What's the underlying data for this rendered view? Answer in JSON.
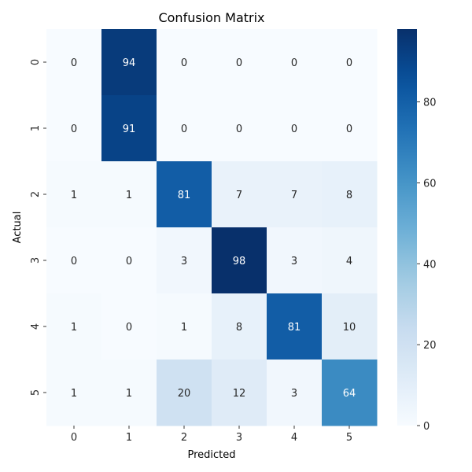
{
  "chart_data": {
    "type": "heatmap",
    "title": "Confusion Matrix",
    "xlabel": "Predicted",
    "ylabel": "Actual",
    "x_categories": [
      "0",
      "1",
      "2",
      "3",
      "4",
      "5"
    ],
    "y_categories": [
      "0",
      "1",
      "2",
      "3",
      "4",
      "5"
    ],
    "values": [
      [
        0,
        94,
        0,
        0,
        0,
        0
      ],
      [
        0,
        91,
        0,
        0,
        0,
        0
      ],
      [
        1,
        1,
        81,
        7,
        7,
        8
      ],
      [
        0,
        0,
        3,
        98,
        3,
        4
      ],
      [
        1,
        0,
        1,
        8,
        81,
        10
      ],
      [
        1,
        1,
        20,
        12,
        3,
        64
      ]
    ],
    "colormap": "Blues",
    "color_range": [
      0,
      98
    ],
    "colorbar_ticks": [
      "0",
      "20",
      "40",
      "60",
      "80"
    ],
    "colorbar_tick_values": [
      0,
      20,
      40,
      60,
      80
    ],
    "colors": {
      "low": "#f7fbff",
      "high": "#08306b"
    }
  }
}
